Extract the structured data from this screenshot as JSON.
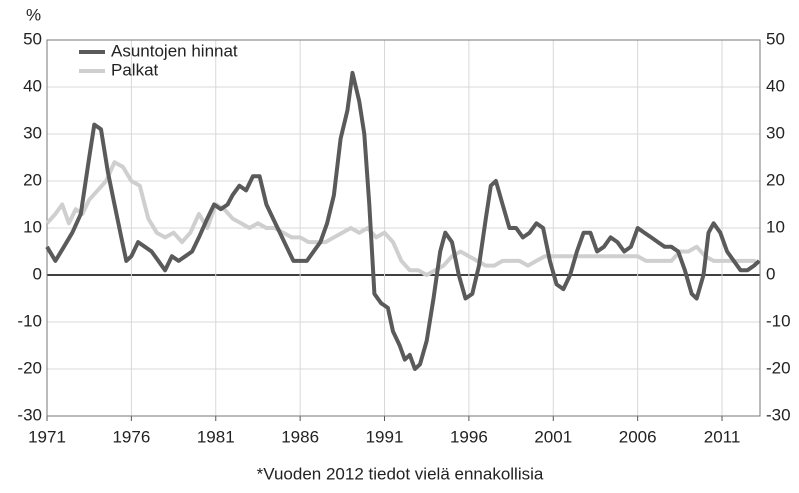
{
  "chart_data": {
    "type": "line",
    "ylabel": "%",
    "footnote": "*Vuoden 2012 tiedot vielä ennakollisia",
    "xlim": [
      1971,
      2013.25
    ],
    "xticks": [
      1971,
      1976,
      1981,
      1986,
      1991,
      1996,
      2001,
      2006,
      2011
    ],
    "ylim": [
      -30,
      50
    ],
    "yticks": [
      -30,
      -20,
      -10,
      0,
      10,
      20,
      30,
      40,
      50
    ],
    "y2lim": [
      -30,
      50
    ],
    "y2ticks": [
      -30,
      -20,
      -10,
      0,
      10,
      20,
      30,
      40,
      50
    ],
    "grid": true,
    "legend": "upper left",
    "series": [
      {
        "name": "Asuntojen hinnat",
        "color": "#5a5a5a",
        "x": [
          1971.0,
          1971.5,
          1972.0,
          1972.5,
          1973.0,
          1973.5,
          1973.8,
          1974.2,
          1974.6,
          1975.0,
          1975.4,
          1975.7,
          1976.0,
          1976.4,
          1976.8,
          1977.2,
          1977.6,
          1978.0,
          1978.4,
          1978.8,
          1979.2,
          1979.6,
          1980.0,
          1980.5,
          1980.9,
          1981.3,
          1981.7,
          1982.0,
          1982.4,
          1982.8,
          1983.2,
          1983.6,
          1984.0,
          1984.4,
          1984.8,
          1985.2,
          1985.6,
          1986.0,
          1986.4,
          1986.8,
          1987.2,
          1987.6,
          1988.0,
          1988.4,
          1988.8,
          1989.1,
          1989.5,
          1989.8,
          1990.1,
          1990.4,
          1990.8,
          1991.2,
          1991.5,
          1991.9,
          1992.2,
          1992.5,
          1992.8,
          1993.1,
          1993.5,
          1993.9,
          1994.3,
          1994.6,
          1995.0,
          1995.4,
          1995.8,
          1996.2,
          1996.6,
          1997.0,
          1997.3,
          1997.6,
          1998.0,
          1998.4,
          1998.8,
          1999.2,
          1999.6,
          2000.0,
          2000.4,
          2000.8,
          2001.2,
          2001.6,
          2002.0,
          2002.4,
          2002.8,
          2003.2,
          2003.6,
          2004.0,
          2004.4,
          2004.8,
          2005.2,
          2005.6,
          2006.0,
          2006.4,
          2006.8,
          2007.2,
          2007.6,
          2008.0,
          2008.4,
          2008.8,
          2009.2,
          2009.5,
          2009.9,
          2010.2,
          2010.5,
          2010.9,
          2011.3,
          2011.7,
          2012.1,
          2012.5,
          2012.9,
          2013.2
        ],
        "values": [
          6,
          3,
          6,
          9,
          13,
          25,
          32,
          31,
          22,
          15,
          8,
          3,
          4,
          7,
          6,
          5,
          3,
          1,
          4,
          3,
          4,
          5,
          8,
          12,
          15,
          14,
          15,
          17,
          19,
          18,
          21,
          21,
          15,
          12,
          9,
          6,
          3,
          3,
          3,
          5,
          7,
          11,
          17,
          29,
          35,
          43,
          37,
          30,
          15,
          -4,
          -6,
          -7,
          -12,
          -15,
          -18,
          -17,
          -20,
          -19,
          -14,
          -5,
          5,
          9,
          7,
          0,
          -5,
          -4,
          2,
          12,
          19,
          20,
          15,
          10,
          10,
          8,
          9,
          11,
          10,
          3,
          -2,
          -3,
          0,
          5,
          9,
          9,
          5,
          6,
          8,
          7,
          5,
          6,
          10,
          9,
          8,
          7,
          6,
          6,
          5,
          1,
          -4,
          -5,
          0,
          9,
          11,
          9,
          5,
          3,
          1,
          1,
          2,
          3
        ]
      },
      {
        "name": "Palkat",
        "color": "#cfcfcf",
        "x": [
          1971.0,
          1971.5,
          1971.9,
          1972.3,
          1972.7,
          1973.1,
          1973.5,
          1974.0,
          1974.5,
          1975.0,
          1975.5,
          1976.0,
          1976.5,
          1977.0,
          1977.5,
          1978.0,
          1978.5,
          1979.0,
          1979.5,
          1980.0,
          1980.5,
          1981.0,
          1981.5,
          1982.0,
          1982.5,
          1983.0,
          1983.5,
          1984.0,
          1984.5,
          1985.0,
          1985.5,
          1986.0,
          1986.5,
          1987.0,
          1987.5,
          1988.0,
          1988.5,
          1989.0,
          1989.5,
          1990.0,
          1990.5,
          1991.0,
          1991.5,
          1992.0,
          1992.5,
          1993.0,
          1993.5,
          1994.0,
          1994.5,
          1995.0,
          1995.5,
          1996.0,
          1996.5,
          1997.0,
          1997.5,
          1998.0,
          1998.5,
          1999.0,
          1999.5,
          2000.0,
          2000.5,
          2001.0,
          2001.5,
          2002.0,
          2002.5,
          2003.0,
          2003.5,
          2004.0,
          2004.5,
          2005.0,
          2005.5,
          2006.0,
          2006.5,
          2007.0,
          2007.5,
          2008.0,
          2008.5,
          2009.0,
          2009.5,
          2010.0,
          2010.5,
          2011.0,
          2011.5,
          2012.0,
          2012.5,
          2013.0
        ],
        "values": [
          11,
          13,
          15,
          11,
          14,
          13,
          16,
          18,
          20,
          24,
          23,
          20,
          19,
          12,
          9,
          8,
          9,
          7,
          9,
          13,
          10,
          15,
          14,
          12,
          11,
          10,
          11,
          10,
          10,
          9,
          8,
          8,
          7,
          7,
          7,
          8,
          9,
          10,
          9,
          10,
          8,
          9,
          7,
          3,
          1,
          1,
          0,
          1,
          2,
          4,
          5,
          4,
          3,
          2,
          2,
          3,
          3,
          3,
          2,
          3,
          4,
          4,
          4,
          4,
          4,
          4,
          4,
          4,
          4,
          4,
          4,
          4,
          3,
          3,
          3,
          3,
          5,
          5,
          6,
          4,
          3,
          3,
          3,
          3,
          3,
          3
        ]
      }
    ]
  }
}
